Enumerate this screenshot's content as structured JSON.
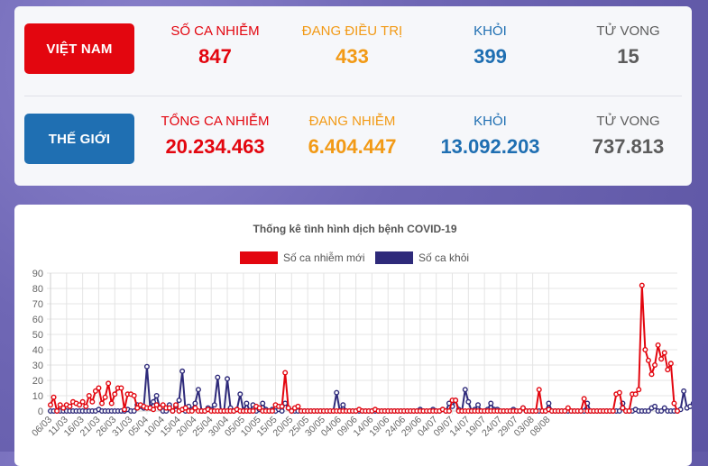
{
  "summary": {
    "vietnam": {
      "label": "VIỆT NAM",
      "cases_label": "SỐ CA NHIỄM",
      "cases": "847",
      "treating_label": "ĐANG ĐIỀU TRỊ",
      "treating": "433",
      "recovered_label": "KHỎI",
      "recovered": "399",
      "deaths_label": "TỬ VONG",
      "deaths": "15"
    },
    "world": {
      "label": "THẾ GIỚI",
      "cases_label": "TỔNG CA NHIỄM",
      "cases": "20.234.463",
      "active_label": "ĐANG NHIỄM",
      "active": "6.404.447",
      "recovered_label": "KHỎI",
      "recovered": "13.092.203",
      "deaths_label": "TỬ VONG",
      "deaths": "737.813"
    }
  },
  "colors": {
    "red": "#e3060f",
    "orange": "#f29a16",
    "blue": "#1f6fb2",
    "gray": "#5c5c5c",
    "series_new": "#e3060f",
    "series_recovered": "#2e2a7a"
  },
  "chart_data": {
    "type": "line",
    "title": "Thống kê tình hình dịch bệnh COVID-19",
    "legend_position": "top-center",
    "grid": true,
    "ylim": [
      0,
      90
    ],
    "yticks": [
      0,
      10,
      20,
      30,
      40,
      50,
      60,
      70,
      80,
      90
    ],
    "start_date": "06/03",
    "x_tick_labels": [
      "06/03",
      "11/03",
      "16/03",
      "21/03",
      "26/03",
      "31/03",
      "05/04",
      "10/04",
      "15/04",
      "20/04",
      "25/04",
      "30/04",
      "05/05",
      "10/05",
      "15/05",
      "20/05",
      "25/05",
      "30/05",
      "04/06",
      "09/06",
      "14/06",
      "19/06",
      "24/06",
      "29/06",
      "04/07",
      "09/07",
      "14/07",
      "19/07",
      "24/07",
      "29/07",
      "03/08",
      "08/08"
    ],
    "series": [
      {
        "name": "Số ca nhiễm mới",
        "values": [
          4,
          9,
          0,
          4,
          2,
          4,
          3,
          6,
          5,
          4,
          6,
          3,
          10,
          6,
          13,
          15,
          5,
          9,
          18,
          5,
          11,
          15,
          15,
          1,
          11,
          11,
          10,
          2,
          4,
          3,
          2,
          2,
          1,
          4,
          2,
          4,
          2,
          2,
          0,
          4,
          0,
          1,
          2,
          0,
          0,
          2,
          0,
          0,
          0,
          1,
          0,
          0,
          0,
          0,
          0,
          0,
          0,
          0,
          1,
          0,
          0,
          0,
          0,
          0,
          3,
          2,
          0,
          0,
          0,
          0,
          4,
          3,
          3,
          25,
          2,
          0,
          2,
          3,
          0,
          0,
          0,
          0,
          0,
          0,
          0,
          0,
          0,
          0,
          0,
          0,
          0,
          0,
          0,
          0,
          0,
          0,
          1,
          0,
          0,
          0,
          0,
          1,
          0,
          0,
          0,
          0,
          0,
          0,
          0,
          0,
          0,
          0,
          0,
          0,
          0,
          0,
          0,
          0,
          0,
          0,
          0,
          0,
          1,
          0,
          0,
          7,
          7,
          0,
          0,
          0,
          0,
          0,
          0,
          0,
          0,
          0,
          0,
          0,
          0,
          0,
          0,
          0,
          0,
          0,
          0,
          0,
          0,
          2,
          0,
          0,
          0,
          0,
          14,
          0,
          0,
          1,
          0,
          0,
          0,
          0,
          0,
          2,
          0,
          0,
          0,
          0,
          8,
          0,
          0,
          0,
          0,
          0,
          0,
          0,
          0,
          0,
          11,
          12,
          2,
          0,
          0,
          11,
          11,
          14,
          82,
          40,
          33,
          24,
          30,
          43,
          34,
          38,
          27,
          31,
          5,
          0
        ],
        "color": "#e3060f"
      },
      {
        "name": "Số ca khỏi",
        "values": [
          0,
          0,
          0,
          0,
          0,
          0,
          0,
          0,
          0,
          0,
          0,
          0,
          0,
          0,
          0,
          1,
          0,
          0,
          0,
          0,
          0,
          0,
          0,
          0,
          1,
          0,
          0,
          4,
          3,
          2,
          29,
          2,
          6,
          10,
          2,
          0,
          0,
          4,
          0,
          3,
          7,
          26,
          0,
          3,
          1,
          5,
          14,
          0,
          0,
          2,
          1,
          4,
          22,
          0,
          0,
          21,
          2,
          0,
          1,
          11,
          0,
          5,
          0,
          4,
          0,
          1,
          5,
          1,
          0,
          1,
          0,
          1,
          0,
          5,
          2,
          0,
          0,
          0,
          0,
          0,
          0,
          0,
          0,
          0,
          0,
          0,
          0,
          0,
          0,
          12,
          0,
          4,
          0,
          0,
          0,
          0,
          0,
          0,
          0,
          0,
          0,
          0,
          0,
          0,
          0,
          0,
          0,
          0,
          0,
          0,
          0,
          0,
          0,
          0,
          0,
          1,
          0,
          0,
          0,
          1,
          0,
          0,
          1,
          0,
          5,
          3,
          7,
          1,
          0,
          14,
          6,
          0,
          1,
          4,
          0,
          0,
          1,
          5,
          1,
          1,
          0,
          0,
          0,
          0,
          1,
          0,
          0,
          2,
          0,
          0,
          0,
          0,
          0,
          0,
          0,
          5,
          0,
          0,
          0,
          0,
          0,
          0,
          0,
          0,
          0,
          0,
          0,
          5,
          0,
          0,
          0,
          0,
          0,
          0,
          0,
          0,
          0,
          0,
          5,
          0,
          0,
          0,
          1,
          0,
          0,
          0,
          0,
          2,
          3,
          0,
          0,
          2,
          0,
          0,
          0,
          0,
          1,
          13,
          2,
          3,
          5,
          0
        ],
        "color": "#2e2a7a"
      }
    ]
  }
}
